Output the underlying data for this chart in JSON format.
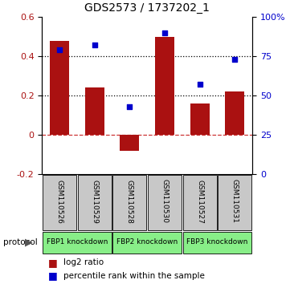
{
  "title": "GDS2573 / 1737202_1",
  "categories": [
    "GSM110526",
    "GSM110529",
    "GSM110528",
    "GSM110530",
    "GSM110527",
    "GSM110531"
  ],
  "log2_ratios": [
    0.48,
    0.24,
    -0.08,
    0.5,
    0.16,
    0.22
  ],
  "percentile_ranks": [
    79,
    82,
    43,
    90,
    57,
    73
  ],
  "bar_color": "#AA1111",
  "dot_color": "#0000CC",
  "ylim_left": [
    -0.2,
    0.6
  ],
  "ylim_right": [
    0,
    100
  ],
  "yticks_left": [
    -0.2,
    0.0,
    0.2,
    0.4,
    0.6
  ],
  "yticks_right": [
    0,
    25,
    50,
    75,
    100
  ],
  "ytick_labels_right": [
    "0",
    "25",
    "50",
    "75",
    "100%"
  ],
  "hlines_dotted": [
    0.2,
    0.4
  ],
  "hline_dashed": 0.0,
  "protocol_groups": [
    {
      "label": "FBP1 knockdown",
      "start": 0,
      "end": 1
    },
    {
      "label": "FBP2 knockdown",
      "start": 2,
      "end": 3
    },
    {
      "label": "FBP3 knockdown",
      "start": 4,
      "end": 5
    }
  ],
  "protocol_label": "protocol",
  "legend_bar_label": "log2 ratio",
  "legend_dot_label": "percentile rank within the sample",
  "bar_width": 0.55,
  "label_bg_color": "#c8c8c8",
  "protocol_bg_color": "#88ee88",
  "zero_line_color": "#CC3333",
  "title_fontsize": 10
}
